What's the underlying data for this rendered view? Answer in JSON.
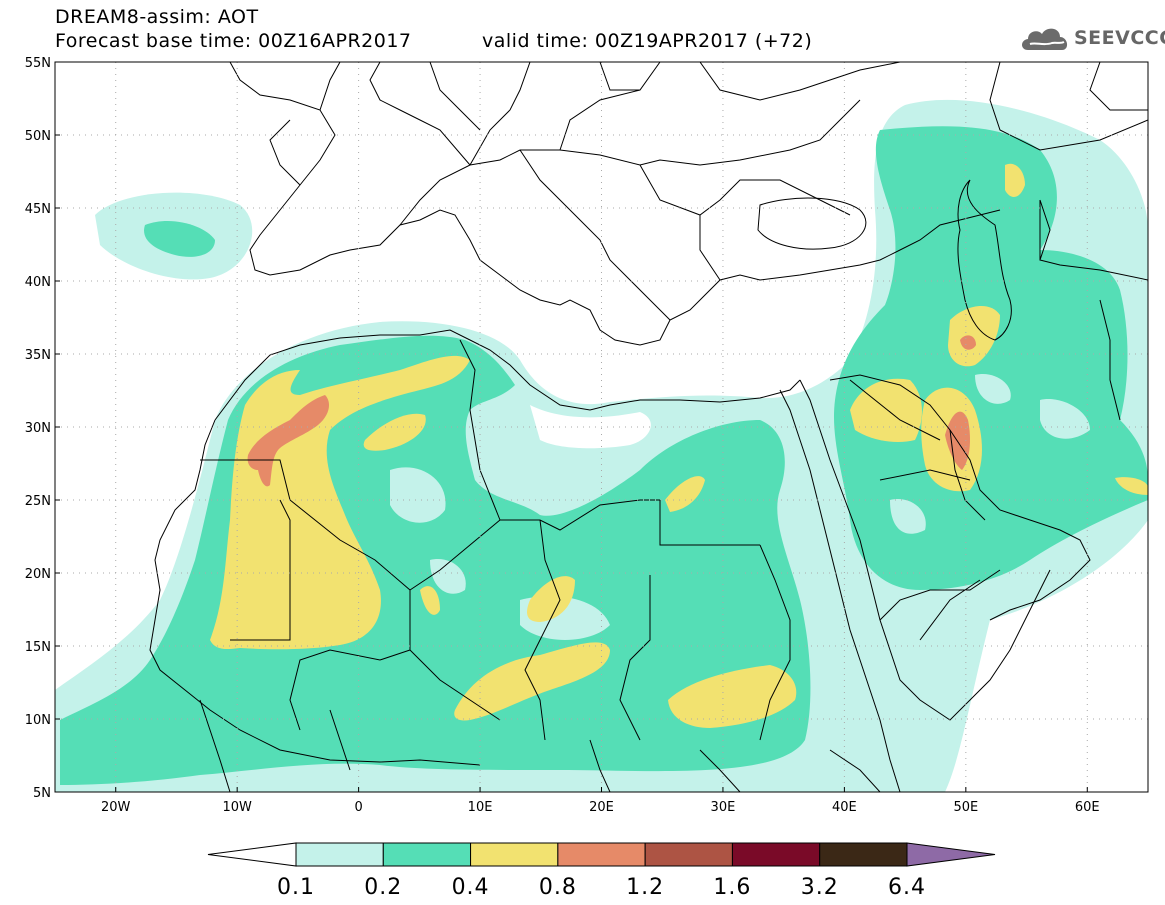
{
  "header": {
    "line1": "DREAM8-assim: AOT",
    "line2": "Forecast base time: 00Z16APR2017",
    "valid": "valid time: 00Z19APR2017 (+72)",
    "logo_text": "SEEVCCC"
  },
  "map": {
    "lat_labels": [
      "55N",
      "50N",
      "45N",
      "40N",
      "35N",
      "30N",
      "25N",
      "20N",
      "15N",
      "10N",
      "5N"
    ],
    "lon_labels": [
      "20W",
      "10W",
      "0",
      "10E",
      "20E",
      "30E",
      "40E",
      "50E",
      "60E"
    ],
    "lat_range": [
      5,
      55
    ],
    "lon_range": [
      -25,
      65
    ],
    "grid": "dotted"
  },
  "colorbar": {
    "labels": [
      "0.1",
      "0.2",
      "0.4",
      "0.8",
      "1.2",
      "1.6",
      "3.2",
      "6.4"
    ],
    "colors": [
      "#ffffff",
      "#c4f2ea",
      "#55deb6",
      "#f2e270",
      "#e68a68",
      "#ad5444",
      "#7a0a28",
      "#3b2816",
      "#8e6aa6"
    ]
  },
  "colors": {
    "c1": "#c4f2ea",
    "c2": "#55deb6",
    "c3": "#f2e270",
    "c4": "#e68a68",
    "border": "#000000"
  }
}
